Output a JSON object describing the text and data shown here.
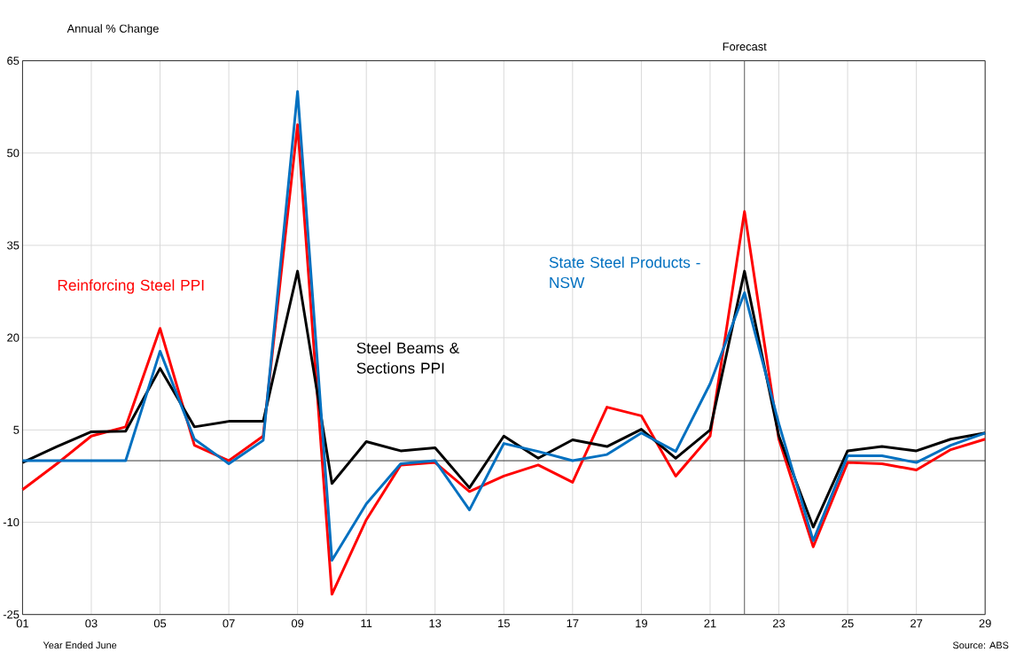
{
  "chart_data": {
    "type": "line",
    "ylabel": "Annual  % Change",
    "xlabel": "Year Ended June",
    "annotations": [
      "Source: ABS"
    ],
    "x": [
      1,
      2,
      3,
      4,
      5,
      6,
      7,
      8,
      9,
      10,
      11,
      12,
      13,
      14,
      15,
      16,
      17,
      18,
      19,
      20,
      21,
      22,
      23,
      24,
      25,
      26,
      27,
      28,
      29
    ],
    "xlim": [
      1,
      29
    ],
    "xticks": [
      {
        "value": 1,
        "label": "01"
      },
      {
        "value": 3,
        "label": "03"
      },
      {
        "value": 5,
        "label": "05"
      },
      {
        "value": 7,
        "label": "07"
      },
      {
        "value": 9,
        "label": "09"
      },
      {
        "value": 11,
        "label": "11"
      },
      {
        "value": 13,
        "label": "13"
      },
      {
        "value": 15,
        "label": "15"
      },
      {
        "value": 17,
        "label": "17"
      },
      {
        "value": 19,
        "label": "19"
      },
      {
        "value": 21,
        "label": "21"
      },
      {
        "value": 23,
        "label": "23"
      },
      {
        "value": 25,
        "label": "25"
      },
      {
        "value": 27,
        "label": "27"
      },
      {
        "value": 29,
        "label": "29"
      }
    ],
    "ylim": [
      -25,
      65
    ],
    "yticks": [
      -25,
      -10,
      5,
      20,
      35,
      50,
      65
    ],
    "grid": true,
    "marker": "none",
    "line_style": "solid",
    "ref_lines": [
      {
        "axis": "y",
        "value": 0,
        "color": "#000000"
      },
      {
        "axis": "x",
        "value": 22,
        "label": "Forecast",
        "color": "#595959"
      }
    ],
    "series": [
      {
        "name": "Reinforcing Steel PPI",
        "color": "#ff0000",
        "values": [
          -4.7,
          -0.5,
          4,
          5.5,
          21.5,
          2.5,
          0,
          4,
          54.6,
          -21.7,
          -9.6,
          -0.7,
          -0.3,
          -5,
          -2.5,
          -0.7,
          -3.5,
          8.7,
          7.3,
          -2.5,
          4,
          40.5,
          3.5,
          -14,
          -0.3,
          -0.5,
          -1.5,
          1.8,
          3.5
        ]
      },
      {
        "name": "Steel Beams & Sections PPI",
        "color": "#000000",
        "values": [
          -0.3,
          2.3,
          4.7,
          4.8,
          15,
          5.5,
          6.4,
          6.4,
          30.8,
          -3.7,
          3.1,
          1.6,
          2.1,
          -4.4,
          4,
          0.4,
          3.4,
          2.3,
          5.1,
          0.4,
          5,
          30.8,
          4,
          -10.8,
          1.6,
          2.3,
          1.6,
          3.5,
          4.5
        ]
      },
      {
        "name": "State Steel Products - NSW",
        "color": "#0070c0",
        "values": [
          0,
          0,
          0,
          0,
          17.8,
          3.5,
          -0.5,
          3.3,
          60,
          -16.2,
          -7,
          -0.5,
          0,
          -8,
          2.8,
          1.5,
          0,
          1,
          4.5,
          1.5,
          12.5,
          27.3,
          6,
          -13,
          0.8,
          0.8,
          -0.3,
          2.5,
          4.5
        ]
      }
    ]
  }
}
